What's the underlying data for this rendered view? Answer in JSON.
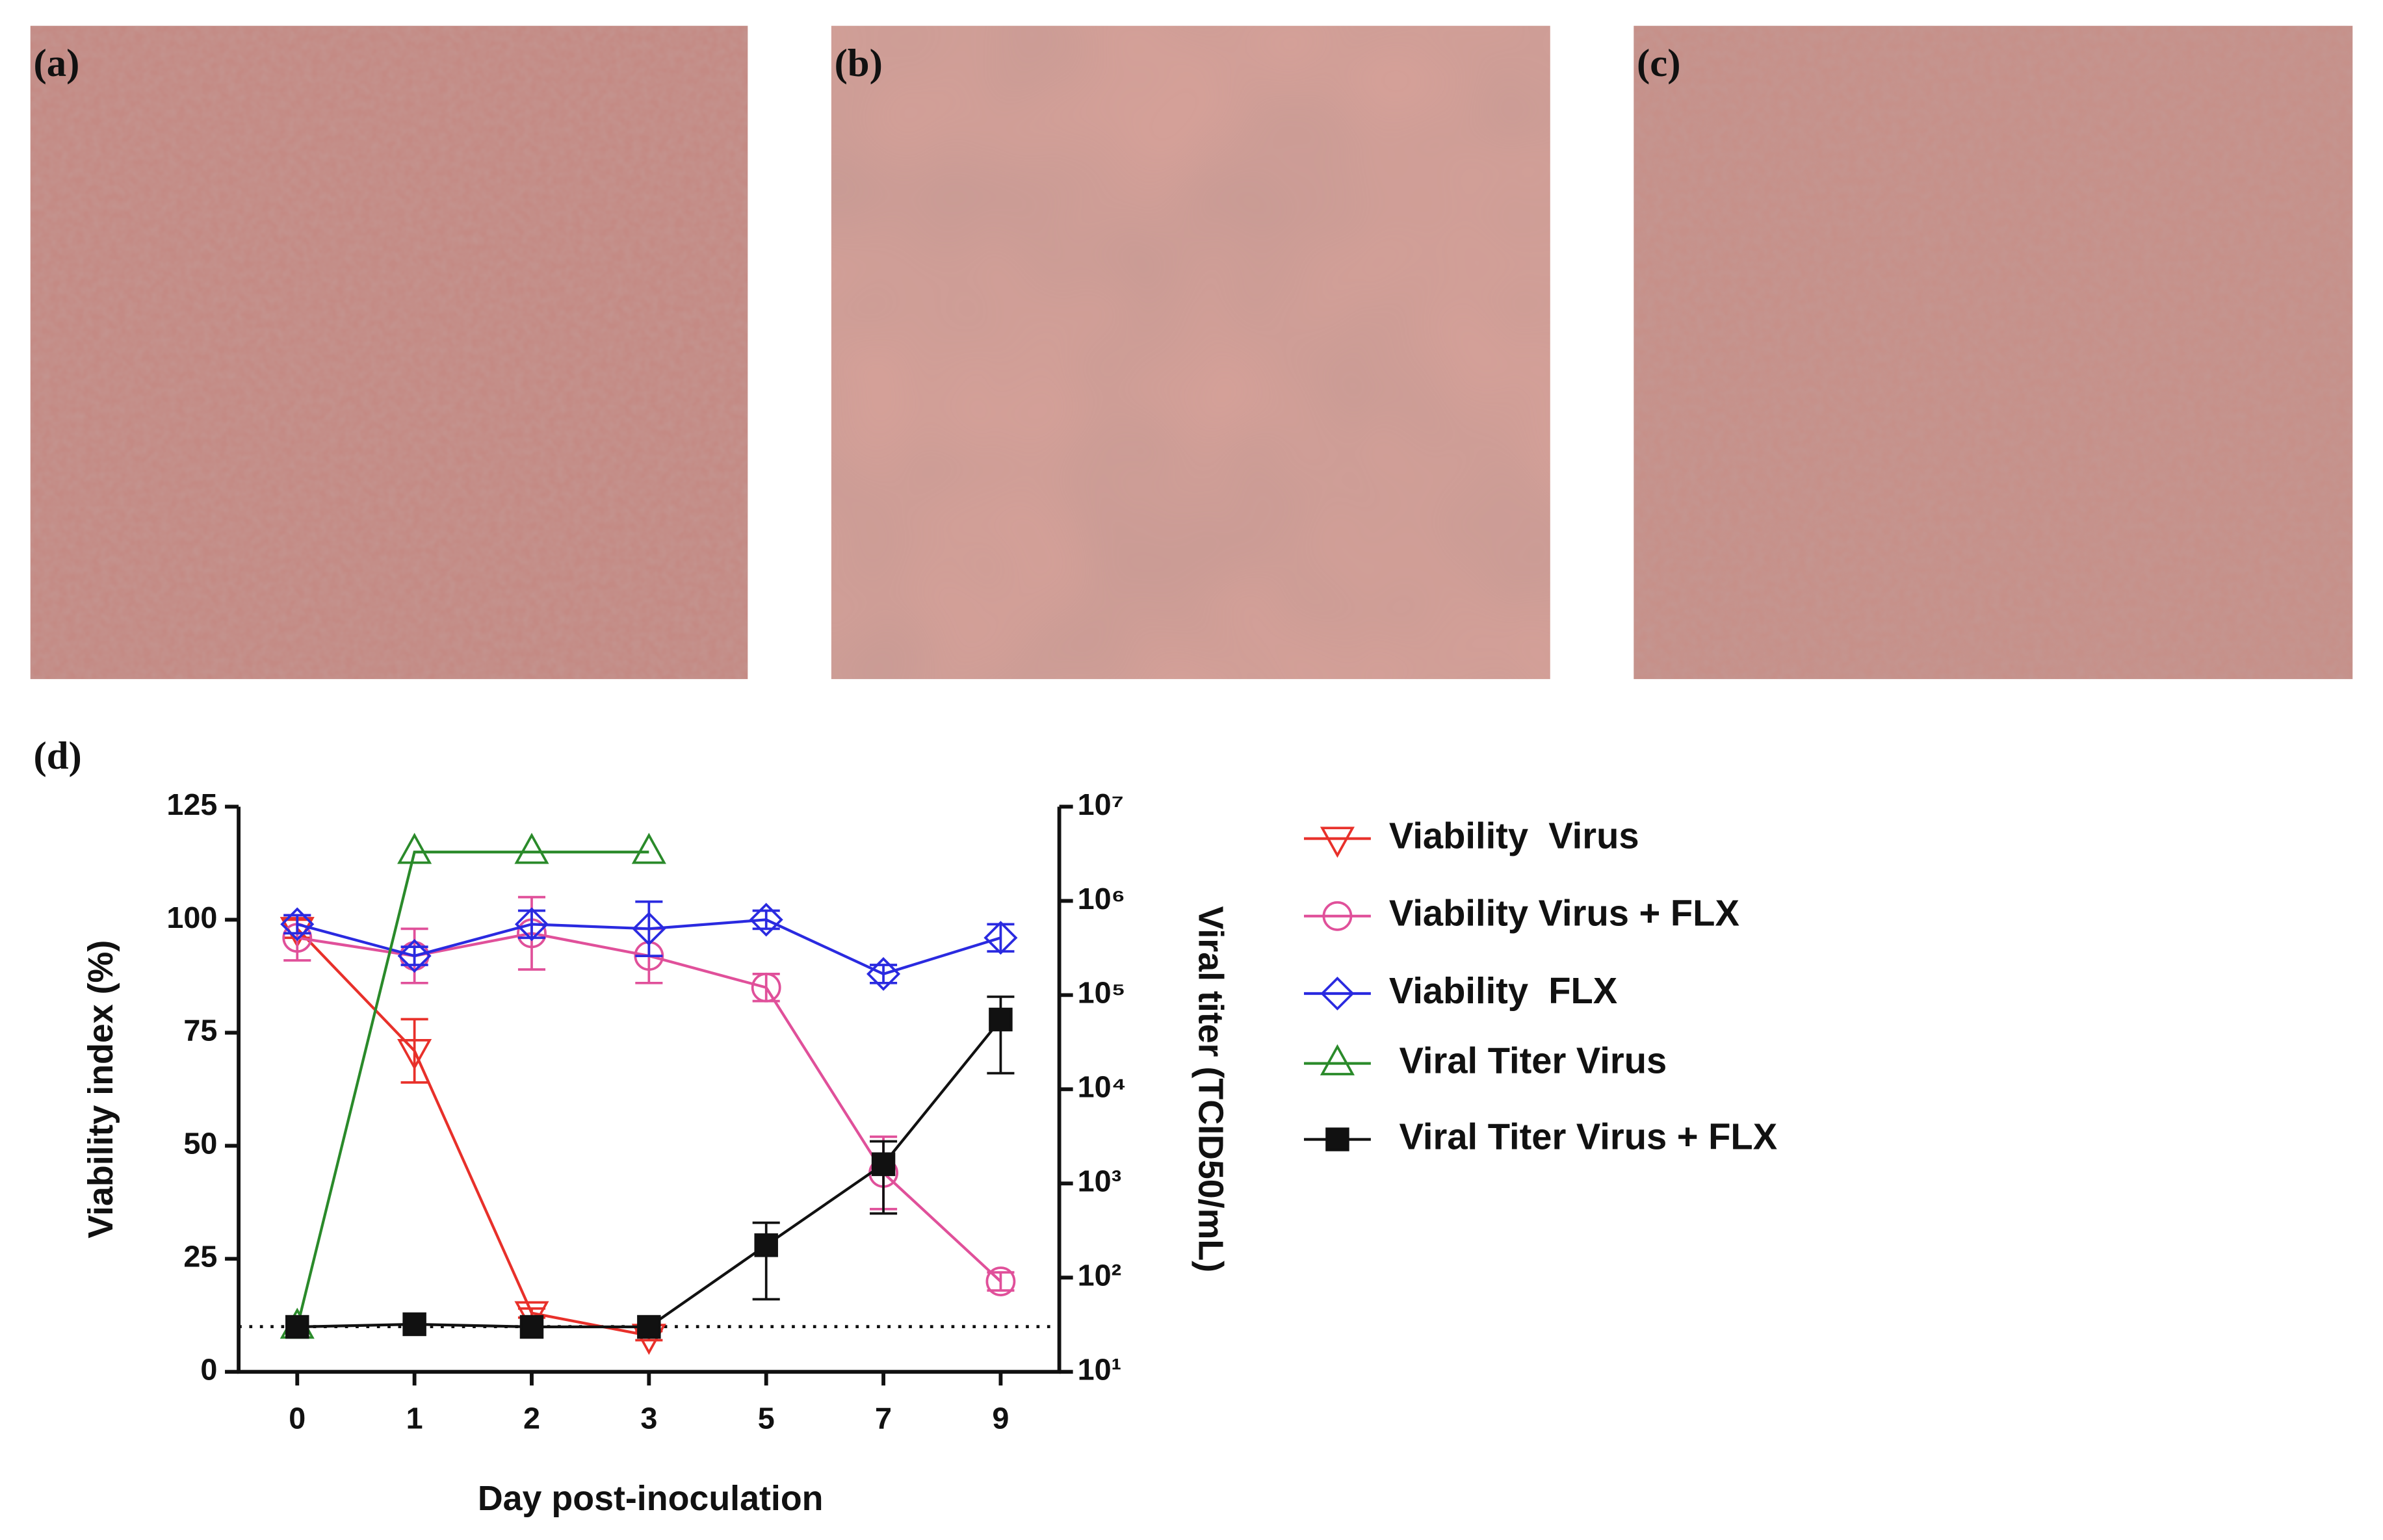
{
  "panel_labels": [
    "(a)",
    "(b)",
    "(c)",
    "(d)"
  ],
  "chart_data": {
    "type": "line",
    "categories": [
      "0",
      "1",
      "2",
      "3",
      "5",
      "7",
      "9"
    ],
    "xlabel": "Day post-inoculation",
    "ylabel": "Viability index (%)",
    "y2label": "Viral titer (TCID50/mL)",
    "ylim": [
      0,
      125
    ],
    "yticks": [
      0,
      25,
      50,
      75,
      100,
      125
    ],
    "y2lim": [
      10,
      10000000
    ],
    "y2scale": "log",
    "y2ticks": [
      {
        "value": 10,
        "label": "10¹"
      },
      {
        "value": 100,
        "label": "10²"
      },
      {
        "value": 1000,
        "label": "10³"
      },
      {
        "value": 10000,
        "label": "10⁴"
      },
      {
        "value": 100000,
        "label": "10⁵"
      },
      {
        "value": 1000000,
        "label": "10⁶"
      },
      {
        "value": 10000000,
        "label": "10⁷"
      }
    ],
    "reference_line": 10,
    "series": [
      {
        "name": "Viability  Virus",
        "color": "#e8302a",
        "marker": "triangle-down",
        "values": [
          98,
          71,
          13,
          8,
          null,
          null,
          null
        ],
        "errors": [
          2,
          7,
          1,
          1,
          null,
          null,
          null
        ]
      },
      {
        "name": "Viability Virus + FLX",
        "color": "#e0509a",
        "marker": "circle",
        "values": [
          96,
          92,
          97,
          92,
          85,
          44,
          20
        ],
        "errors": [
          5,
          6,
          8,
          6,
          3,
          8,
          2
        ]
      },
      {
        "name": "Viability  FLX",
        "color": "#2a2ae0",
        "marker": "diamond",
        "values": [
          99,
          92,
          99,
          98,
          100,
          88,
          96
        ],
        "errors": [
          2,
          2,
          3,
          6,
          2,
          2,
          3
        ]
      },
      {
        "name": " Viral Titer Virus",
        "color": "#2a8a2a",
        "marker": "triangle-up",
        "axis": "y2",
        "values": [
          30,
          3300000,
          3300000,
          3300000,
          null,
          null,
          null
        ]
      },
      {
        "name": " Viral Titer Virus + FLX",
        "color": "#111111",
        "marker": "square",
        "axis": "y2",
        "values": [
          30,
          32,
          30,
          30,
          221,
          1600,
          55000
        ],
        "error_range": [
          null,
          null,
          null,
          null,
          [
            59,
            383
          ],
          [
            480,
            2800
          ],
          [
            14800,
            96000
          ]
        ]
      }
    ]
  }
}
